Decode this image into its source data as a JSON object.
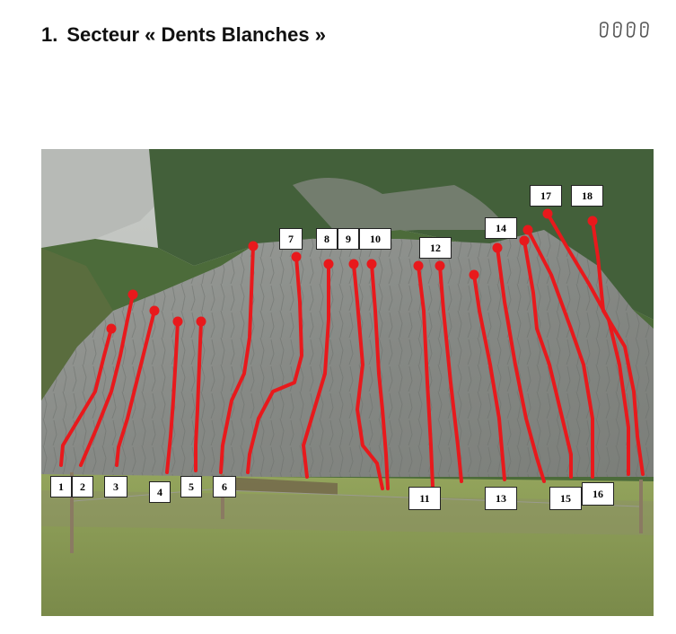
{
  "header": {
    "section_number": "1.",
    "section_title": "Secteur « Dents Blanches »",
    "rating_icon": "quickdraw-icon",
    "rating_count": 4
  },
  "routes": [
    {
      "label": "1"
    },
    {
      "label": "2"
    },
    {
      "label": "3"
    },
    {
      "label": "4"
    },
    {
      "label": "5"
    },
    {
      "label": "6"
    },
    {
      "label": "7"
    },
    {
      "label": "8"
    },
    {
      "label": "9"
    },
    {
      "label": "10"
    },
    {
      "label": "11"
    },
    {
      "label": "12"
    },
    {
      "label": "13"
    },
    {
      "label": "14"
    },
    {
      "label": "15"
    },
    {
      "label": "16"
    },
    {
      "label": "17"
    },
    {
      "label": "18"
    }
  ],
  "colors": {
    "route_line": "#e8191c",
    "rock": "#8f9290",
    "vegetation": "#3d5a2c",
    "meadow": "#8a9c55"
  }
}
